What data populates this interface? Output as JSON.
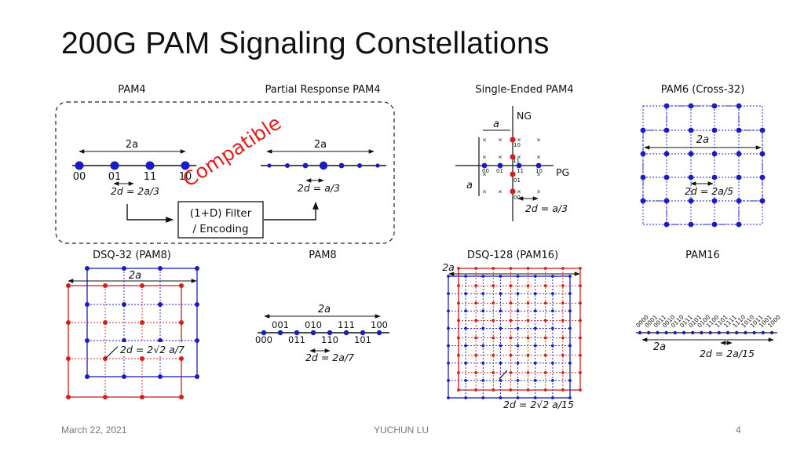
{
  "slide": {
    "title": "200G PAM Signaling Constellations",
    "footer": {
      "date": "March 22, 2021",
      "author": "YUCHUN LU",
      "page": "4"
    }
  },
  "colors": {
    "blue": "#1b1bc4",
    "red": "#d02020",
    "compatible": "#e0201c"
  },
  "panels": {
    "pam4": {
      "title": "PAM4",
      "span": "2a",
      "symbols": [
        "00",
        "01",
        "11",
        "10"
      ],
      "spacing": "2d = 2a/3"
    },
    "pr_pam4": {
      "title": "Partial Response PAM4",
      "span": "2a",
      "spacing": "2d = a/3"
    },
    "filter": {
      "line1": "(1+D) Filter",
      "line2": "/ Encoding"
    },
    "compatible": "Compatible",
    "se_pam4": {
      "title": "Single-Ended PAM4",
      "axis_y": "NG",
      "axis_x": "PG",
      "a_label": "a",
      "labels": [
        "10",
        "11",
        "00",
        "01",
        "11",
        "10",
        "01",
        "00"
      ],
      "spacing": "2d = a/3"
    },
    "pam6": {
      "title": "PAM6 (Cross-32)",
      "span": "2a",
      "spacing": "2d = 2a/5"
    },
    "dsq32": {
      "title": "DSQ-32 (PAM8)",
      "span": "2a",
      "spacing": "2d = 2√2 a/7"
    },
    "pam8": {
      "title": "PAM8",
      "span": "2a",
      "upper": [
        "001",
        "010",
        "111",
        "100"
      ],
      "lower": [
        "000",
        "011",
        "110",
        "101"
      ],
      "spacing": "2d = 2a/7"
    },
    "dsq128": {
      "title": "DSQ-128 (PAM16)",
      "span": "2a",
      "spacing": "2d = 2√2 a/15"
    },
    "pam16": {
      "title": "PAM16",
      "span": "2a",
      "symbols": [
        "0000",
        "0001",
        "0011",
        "0010",
        "0110",
        "0111",
        "0101",
        "0100",
        "1100",
        "1101",
        "1111",
        "1110",
        "1010",
        "1011",
        "1001",
        "1000"
      ],
      "spacing": "2d = 2a/15"
    }
  }
}
